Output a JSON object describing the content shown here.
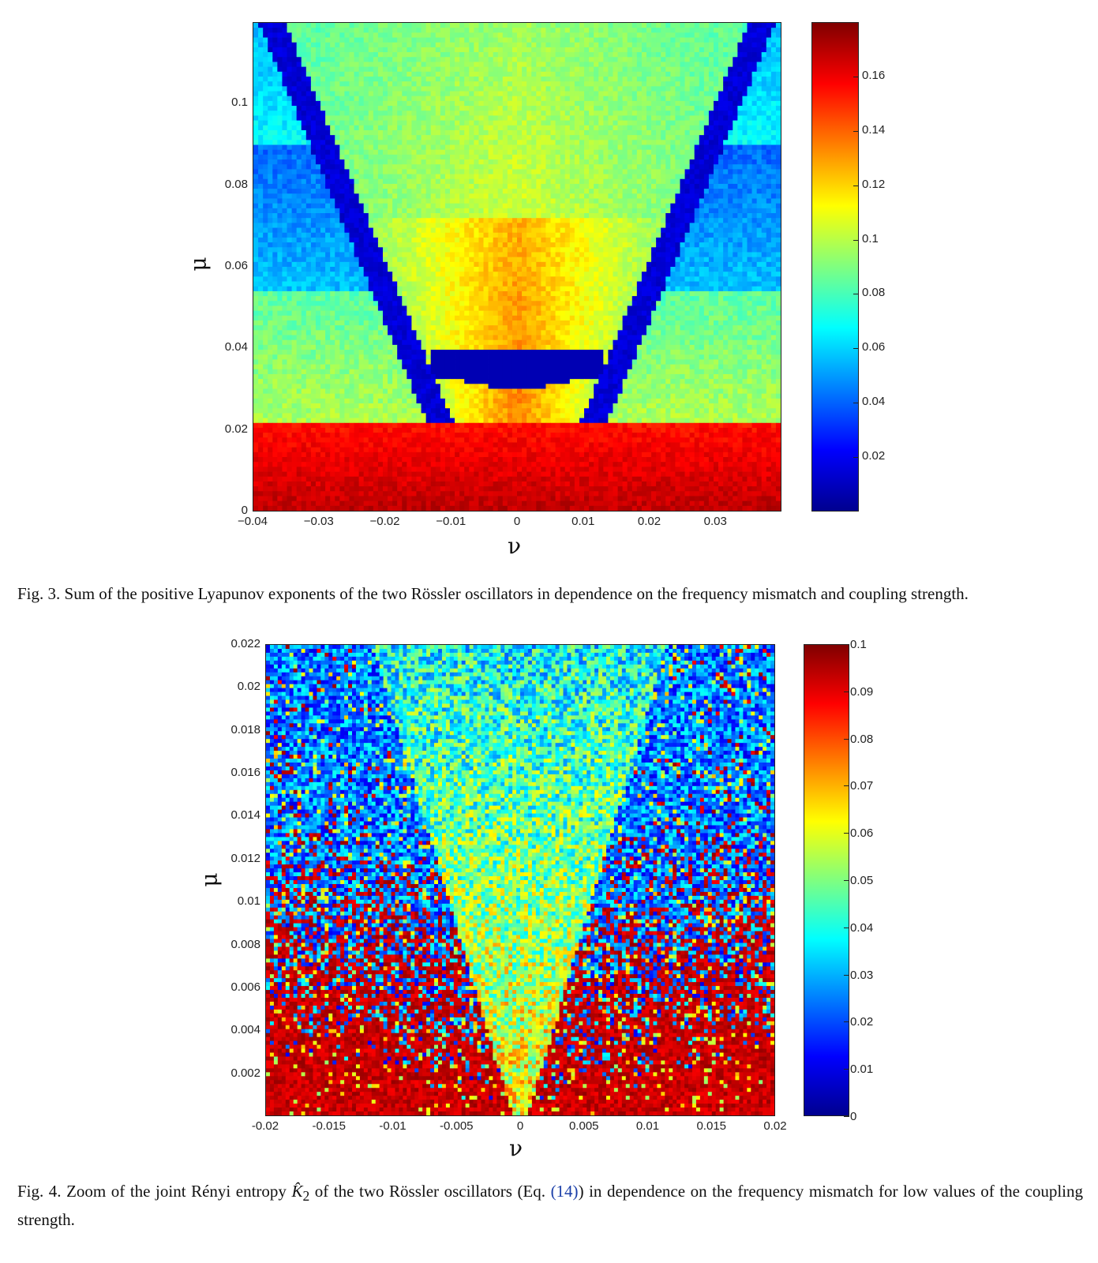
{
  "figures": [
    {
      "chart_data": {
        "type": "heatmap",
        "xlabel": "ν",
        "ylabel": "μ",
        "xlim": [
          -0.04,
          0.04
        ],
        "ylim": [
          0,
          0.12
        ],
        "x_ticks": [
          "−0.04",
          "−0.03",
          "−0.02",
          "−0.01",
          "0",
          "0.01",
          "0.02",
          "0.03"
        ],
        "y_ticks": [
          "0",
          "0.02",
          "0.04",
          "0.06",
          "0.08",
          "0.1"
        ],
        "colorbar": {
          "min": 0,
          "max": 0.18,
          "colormap": "jet",
          "ticks": [
            "0.02",
            "0.04",
            "0.06",
            "0.08",
            "0.1",
            "0.12",
            "0.14",
            "0.16"
          ]
        }
      },
      "caption": "Fig. 3. Sum of the positive Lyapunov exponents of the two Rössler oscillators in dependence on the frequency mismatch and coupling strength."
    },
    {
      "chart_data": {
        "type": "heatmap",
        "xlabel": "ν",
        "ylabel": "μ",
        "xlim": [
          -0.02,
          0.02
        ],
        "ylim": [
          0,
          0.022
        ],
        "x_ticks": [
          "-0.02",
          "-0.015",
          "-0.01",
          "-0.005",
          "0",
          "0.005",
          "0.01",
          "0.015",
          "0.02"
        ],
        "y_ticks": [
          "0.002",
          "0.004",
          "0.006",
          "0.008",
          "0.01",
          "0.012",
          "0.014",
          "0.016",
          "0.018",
          "0.02",
          "0.022"
        ],
        "colorbar": {
          "min": 0,
          "max": 0.1,
          "colormap": "jet",
          "ticks": [
            "0",
            "0.01",
            "0.02",
            "0.03",
            "0.04",
            "0.05",
            "0.06",
            "0.07",
            "0.08",
            "0.09",
            "0.1"
          ]
        }
      },
      "caption": {
        "prefix": "Fig. 4. Zoom of the joint Rényi entropy ",
        "symbol": "K̂",
        "subscript": "2",
        "middle": " of the two Rössler oscillators (Eq. ",
        "ref": "(14)",
        "suffix": ") in dependence on the frequency mismatch for low values of the coupling strength."
      }
    }
  ]
}
